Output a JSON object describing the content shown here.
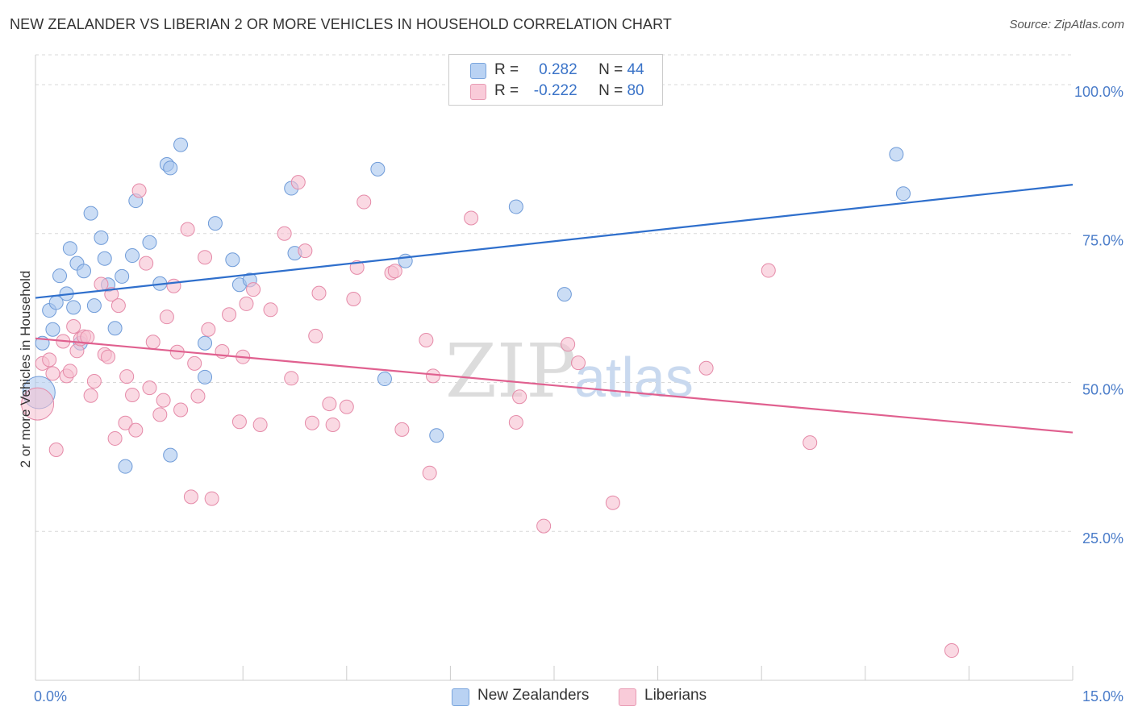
{
  "title": "NEW ZEALANDER VS LIBERIAN 2 OR MORE VEHICLES IN HOUSEHOLD CORRELATION CHART",
  "source": "Source: ZipAtlas.com",
  "watermark": {
    "zip": "ZIP",
    "atlas": "atlas"
  },
  "legend": {
    "r_label": "R =",
    "n_label": "N =",
    "rows": [
      {
        "r": "0.282",
        "n": "44"
      },
      {
        "r": "-0.222",
        "n": "80"
      }
    ]
  },
  "bottom_legend": [
    "New Zealanders",
    "Liberians"
  ],
  "chart_data": {
    "type": "scatter",
    "title": "NEW ZEALANDER VS LIBERIAN 2 OR MORE VEHICLES IN HOUSEHOLD CORRELATION CHART",
    "xlabel": "",
    "ylabel": "2 or more Vehicles in Household",
    "xlim": [
      0,
      15
    ],
    "ylim": [
      0,
      105
    ],
    "x_ticks": [
      "0.0%",
      "15.0%"
    ],
    "y_ticks": [
      {
        "value": 25,
        "label": "25.0%"
      },
      {
        "value": 50,
        "label": "50.0%"
      },
      {
        "value": 75,
        "label": "75.0%"
      },
      {
        "value": 100,
        "label": "100.0%"
      }
    ],
    "grid": "horizontal dashed",
    "legend_position": "top-center",
    "series": [
      {
        "name": "New Zealanders",
        "color": "#a9c6ef",
        "stroke": "#6f9bd8",
        "line_color": "#2f6fcc",
        "trend": {
          "x": [
            0,
            15
          ],
          "y": [
            64.2,
            83.2
          ]
        },
        "points": [
          [
            0.05,
            48.3
          ],
          [
            0.1,
            56.6
          ],
          [
            0.2,
            62.1
          ],
          [
            0.25,
            58.9
          ],
          [
            0.3,
            63.4
          ],
          [
            0.35,
            67.9
          ],
          [
            0.45,
            64.9
          ],
          [
            0.5,
            72.5
          ],
          [
            0.55,
            62.6
          ],
          [
            0.6,
            70.0
          ],
          [
            0.65,
            56.6
          ],
          [
            0.7,
            68.7
          ],
          [
            0.8,
            78.4
          ],
          [
            0.85,
            62.9
          ],
          [
            0.95,
            74.3
          ],
          [
            1.0,
            70.8
          ],
          [
            1.05,
            66.4
          ],
          [
            1.15,
            59.1
          ],
          [
            1.25,
            67.8
          ],
          [
            1.3,
            35.9
          ],
          [
            1.4,
            71.3
          ],
          [
            1.45,
            80.5
          ],
          [
            1.65,
            73.5
          ],
          [
            1.8,
            66.6
          ],
          [
            1.9,
            86.6
          ],
          [
            1.95,
            37.8
          ],
          [
            1.95,
            86.0
          ],
          [
            2.1,
            89.9
          ],
          [
            2.45,
            56.6
          ],
          [
            2.45,
            50.9
          ],
          [
            2.6,
            76.7
          ],
          [
            2.85,
            70.6
          ],
          [
            2.95,
            66.4
          ],
          [
            3.1,
            67.2
          ],
          [
            3.7,
            82.6
          ],
          [
            3.75,
            71.7
          ],
          [
            4.95,
            85.8
          ],
          [
            5.05,
            50.6
          ],
          [
            5.35,
            70.4
          ],
          [
            5.8,
            41.1
          ],
          [
            6.95,
            79.5
          ],
          [
            7.65,
            64.8
          ],
          [
            12.45,
            88.3
          ],
          [
            12.55,
            81.7
          ]
        ]
      },
      {
        "name": "Liberians",
        "color": "#f6bfd0",
        "stroke": "#e58aa8",
        "line_color": "#e0608f",
        "trend": {
          "x": [
            0,
            15
          ],
          "y": [
            57.4,
            41.6
          ]
        },
        "points": [
          [
            0.03,
            46.4
          ],
          [
            0.1,
            53.2
          ],
          [
            0.2,
            53.8
          ],
          [
            0.25,
            51.5
          ],
          [
            0.3,
            38.7
          ],
          [
            0.4,
            56.9
          ],
          [
            0.45,
            51.1
          ],
          [
            0.5,
            51.9
          ],
          [
            0.55,
            59.4
          ],
          [
            0.6,
            55.3
          ],
          [
            0.65,
            57.3
          ],
          [
            0.7,
            57.7
          ],
          [
            0.75,
            57.6
          ],
          [
            0.8,
            47.8
          ],
          [
            0.85,
            50.2
          ],
          [
            0.95,
            66.5
          ],
          [
            1.0,
            54.7
          ],
          [
            1.05,
            54.3
          ],
          [
            1.1,
            64.8
          ],
          [
            1.15,
            40.6
          ],
          [
            1.2,
            62.9
          ],
          [
            1.3,
            43.2
          ],
          [
            1.32,
            51.0
          ],
          [
            1.4,
            47.9
          ],
          [
            1.45,
            42.0
          ],
          [
            1.5,
            82.2
          ],
          [
            1.6,
            70.0
          ],
          [
            1.65,
            49.1
          ],
          [
            1.7,
            56.8
          ],
          [
            1.8,
            44.6
          ],
          [
            1.85,
            47.0
          ],
          [
            1.9,
            61.0
          ],
          [
            2.0,
            66.2
          ],
          [
            2.05,
            55.1
          ],
          [
            2.1,
            45.4
          ],
          [
            2.2,
            75.7
          ],
          [
            2.25,
            30.8
          ],
          [
            2.3,
            53.2
          ],
          [
            2.35,
            47.7
          ],
          [
            2.45,
            71.0
          ],
          [
            2.5,
            58.9
          ],
          [
            2.55,
            30.5
          ],
          [
            2.7,
            55.2
          ],
          [
            2.8,
            61.4
          ],
          [
            2.95,
            43.4
          ],
          [
            3.0,
            54.3
          ],
          [
            3.05,
            63.2
          ],
          [
            3.15,
            65.6
          ],
          [
            3.25,
            42.9
          ],
          [
            3.4,
            62.2
          ],
          [
            3.6,
            75.0
          ],
          [
            3.7,
            50.7
          ],
          [
            3.8,
            83.6
          ],
          [
            3.9,
            72.1
          ],
          [
            4.0,
            43.2
          ],
          [
            4.05,
            57.8
          ],
          [
            4.1,
            65.0
          ],
          [
            4.25,
            46.4
          ],
          [
            4.3,
            42.9
          ],
          [
            4.5,
            45.9
          ],
          [
            4.6,
            64.0
          ],
          [
            4.65,
            69.3
          ],
          [
            4.75,
            80.3
          ],
          [
            5.15,
            68.4
          ],
          [
            5.2,
            68.7
          ],
          [
            5.3,
            42.1
          ],
          [
            5.65,
            57.1
          ],
          [
            5.7,
            34.8
          ],
          [
            5.75,
            51.1
          ],
          [
            6.3,
            77.6
          ],
          [
            6.95,
            43.3
          ],
          [
            7.0,
            47.6
          ],
          [
            7.35,
            25.9
          ],
          [
            7.7,
            56.4
          ],
          [
            7.85,
            53.3
          ],
          [
            8.35,
            29.8
          ],
          [
            9.7,
            52.4
          ],
          [
            10.6,
            68.8
          ],
          [
            11.2,
            39.9
          ],
          [
            13.25,
            5.0
          ]
        ]
      }
    ]
  }
}
